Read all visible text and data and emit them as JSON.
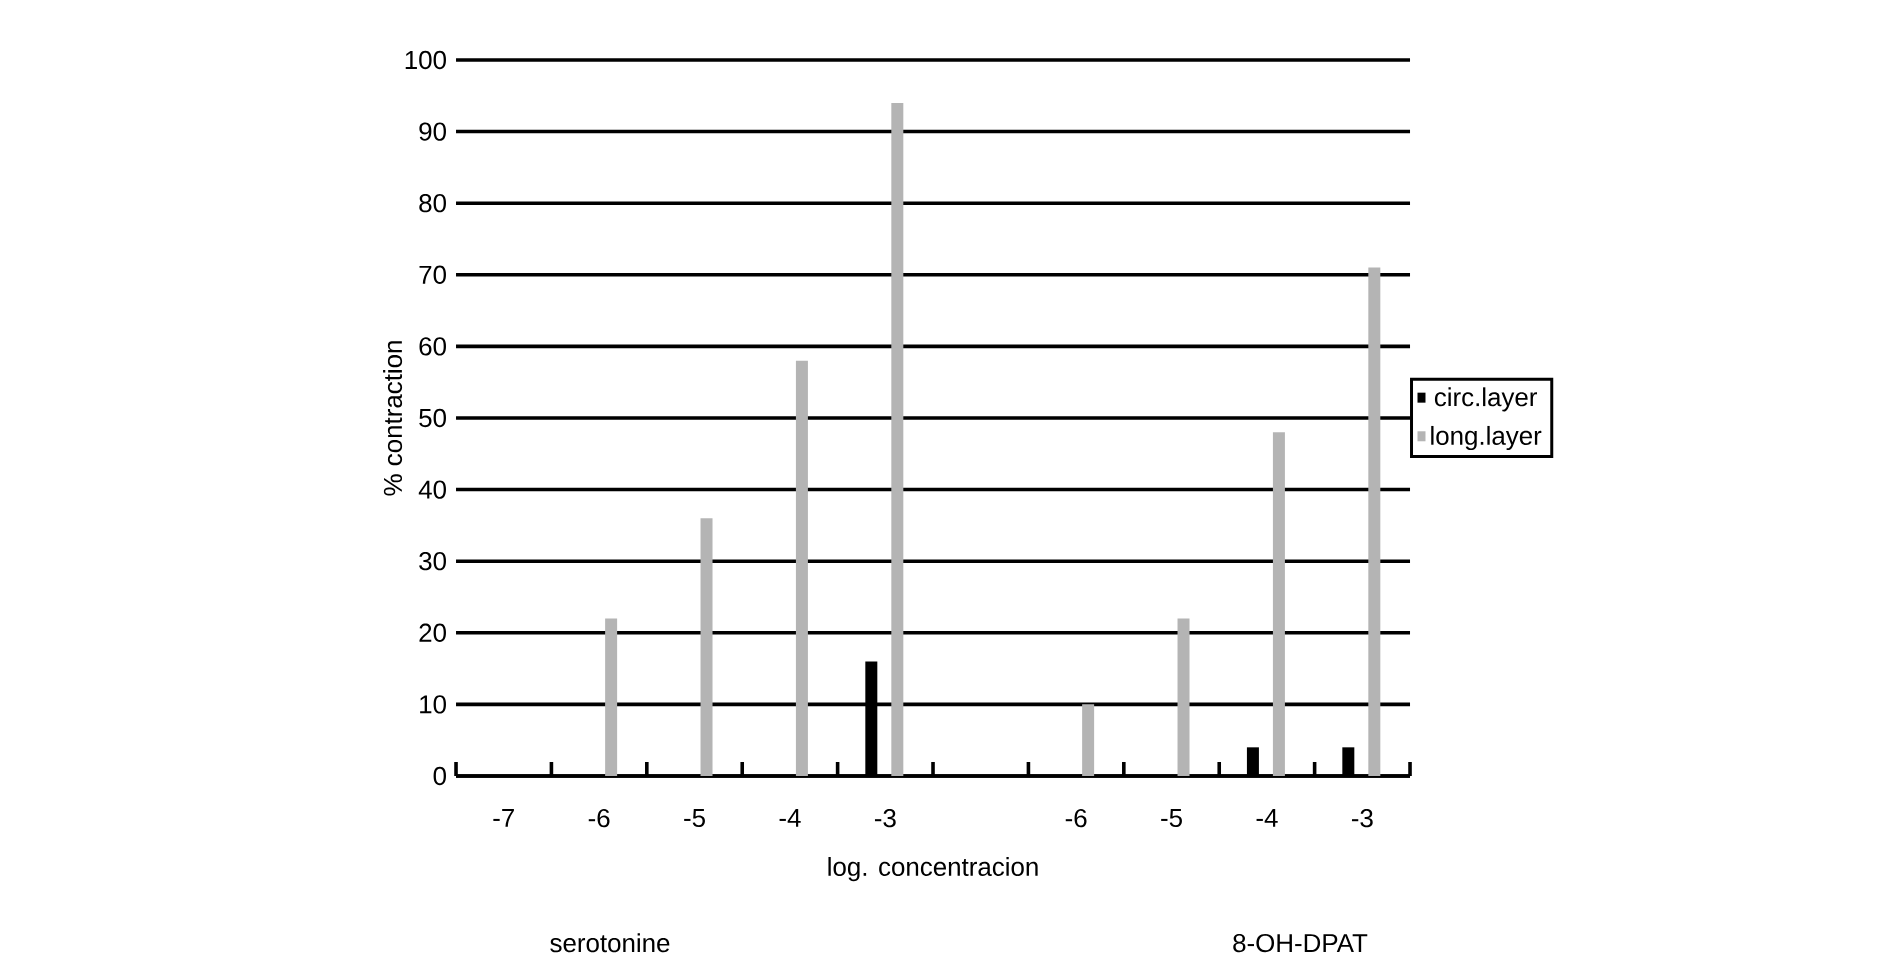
{
  "chart_data": {
    "type": "bar",
    "xlabel": "log. concentracion",
    "ylabel": "% contraction",
    "categories": [
      "-7",
      "-6",
      "-5",
      "-4",
      "-3",
      null,
      "-6",
      "-5",
      "-4",
      "-3"
    ],
    "series": [
      {
        "name": "circ.layer",
        "color": "#000000",
        "values": [
          null,
          null,
          null,
          null,
          16,
          null,
          null,
          null,
          4,
          4
        ]
      },
      {
        "name": "long.layer",
        "color": "#b4b4b4",
        "values": [
          null,
          22,
          36,
          58,
          94,
          null,
          10,
          22,
          48,
          71
        ]
      }
    ],
    "ylim": [
      0,
      100
    ],
    "yticks": [
      0,
      10,
      20,
      30,
      40,
      50,
      60,
      70,
      80,
      90,
      100
    ],
    "grid": "y",
    "legend": "right",
    "annotations": [
      "serotonine",
      "8-OH-DPAT"
    ]
  }
}
